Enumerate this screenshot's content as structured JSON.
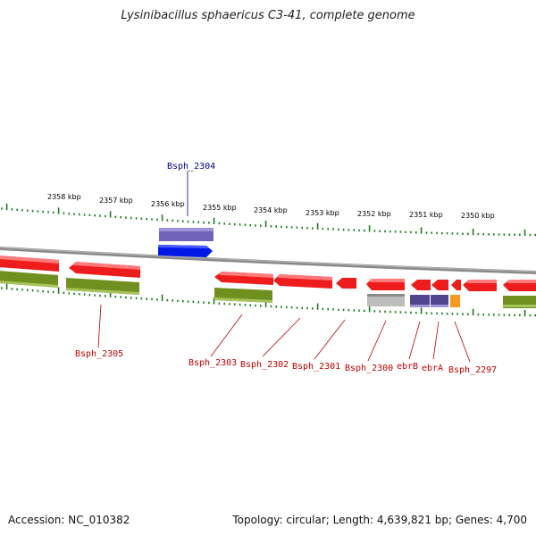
{
  "title": "Lysinibacillus sphaericus C3-41, complete genome",
  "accession_text": "Accession: NC_010382",
  "summary_text": "Topology: circular; Length: 4,639,821 bp; Genes: 4,700",
  "colors": {
    "cds_fwd_red": "#ee1c1c",
    "cds_rev_green": "#6f8f1f",
    "gene_gray": "#bdbdbd",
    "gene_purple": "#52458f",
    "gene_orange": "#f59a1f",
    "highlight_blue": "#0018e6",
    "highlight_lavender": "#7063b8",
    "tick_green": "#1d7a1d",
    "backbone_gray": "#8a8a8a",
    "label_red": "#c00000",
    "label_blue": "#00008b"
  },
  "kbp_labels": [
    {
      "pos": 2358,
      "text": "2358 kbp"
    },
    {
      "pos": 2357,
      "text": "2357 kbp"
    },
    {
      "pos": 2356,
      "text": "2356 kbp"
    },
    {
      "pos": 2355,
      "text": "2355 kbp"
    },
    {
      "pos": 2354,
      "text": "2354 kbp"
    },
    {
      "pos": 2353,
      "text": "2353 kbp"
    },
    {
      "pos": 2352,
      "text": "2352 kbp"
    },
    {
      "pos": 2351,
      "text": "2351 kbp"
    },
    {
      "pos": 2350,
      "text": "2350 kbp"
    }
  ],
  "gene_labels": [
    {
      "id": "bsph-2304",
      "text": "Bsph_2304",
      "color": "blue"
    },
    {
      "id": "bsph-2305",
      "text": "Bsph_2305",
      "color": "red"
    },
    {
      "id": "bsph-2303",
      "text": "Bsph_2303",
      "color": "red"
    },
    {
      "id": "bsph-2302",
      "text": "Bsph_2302",
      "color": "red"
    },
    {
      "id": "bsph-2301",
      "text": "Bsph_2301",
      "color": "red"
    },
    {
      "id": "bsph-2300",
      "text": "Bsph_2300",
      "color": "red"
    },
    {
      "id": "ebrb",
      "text": "ebrB",
      "color": "red"
    },
    {
      "id": "ebra",
      "text": "ebrA",
      "color": "red"
    },
    {
      "id": "bsph-2297",
      "text": "Bsph_2297",
      "color": "red"
    }
  ]
}
